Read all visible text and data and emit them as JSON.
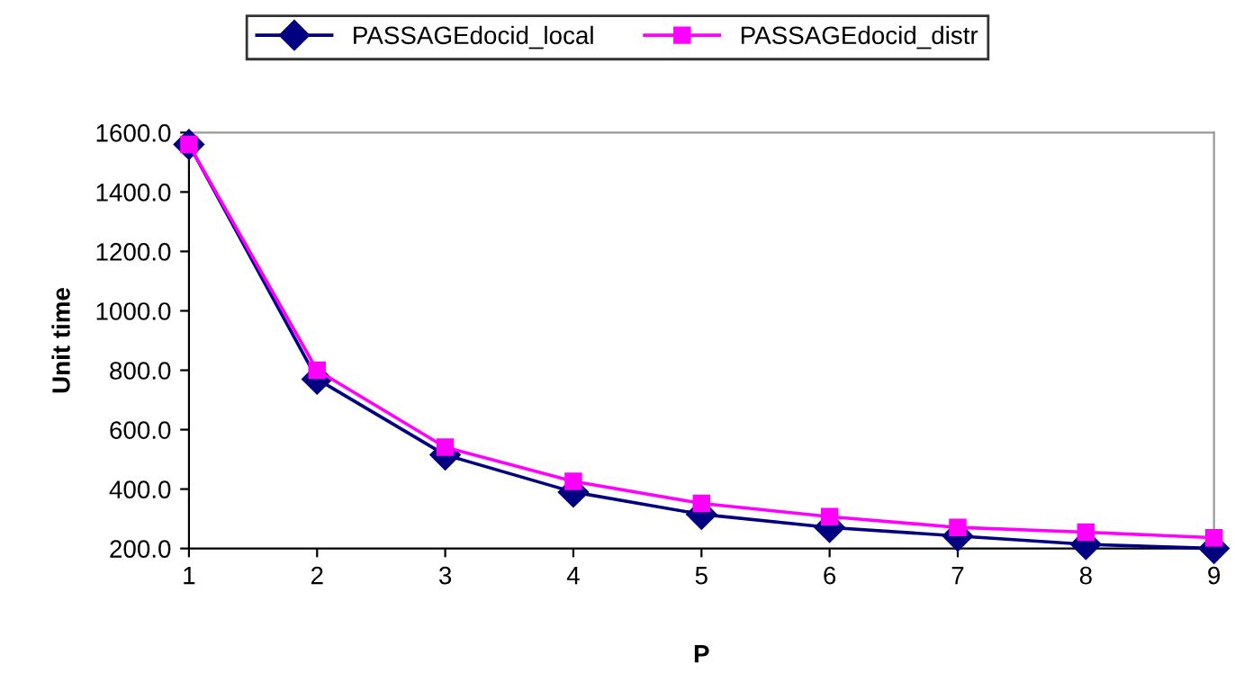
{
  "chart_data": {
    "type": "line",
    "xlabel": "P",
    "ylabel": "Unit time",
    "x": [
      1,
      2,
      3,
      4,
      5,
      6,
      7,
      8,
      9
    ],
    "series": [
      {
        "name": "PASSAGEdocid_local",
        "color": "#000080",
        "marker": "diamond",
        "values": [
          1560,
          770,
          515,
          390,
          315,
          271,
          242,
          214,
          200
        ]
      },
      {
        "name": "PASSAGEdocid_distr",
        "color": "#ff00ff",
        "marker": "square",
        "values": [
          1560,
          800,
          541,
          426,
          352,
          307,
          271,
          255,
          236
        ]
      }
    ],
    "xlim": [
      1,
      9
    ],
    "xticks": [
      1,
      2,
      3,
      4,
      5,
      6,
      7,
      8,
      9
    ],
    "ylim": [
      200,
      1600
    ],
    "yticks": [
      {
        "value": 200,
        "label": "200.0"
      },
      {
        "value": 400,
        "label": "400.0"
      },
      {
        "value": 600,
        "label": "600.0"
      },
      {
        "value": 800,
        "label": "800.0"
      },
      {
        "value": 1000,
        "label": "1000.0"
      },
      {
        "value": 1200,
        "label": "1200.0"
      },
      {
        "value": 1400,
        "label": "1400.0"
      },
      {
        "value": 1600,
        "label": "1600.0"
      }
    ],
    "grid": false,
    "legend": "top",
    "line_style": "solid"
  }
}
